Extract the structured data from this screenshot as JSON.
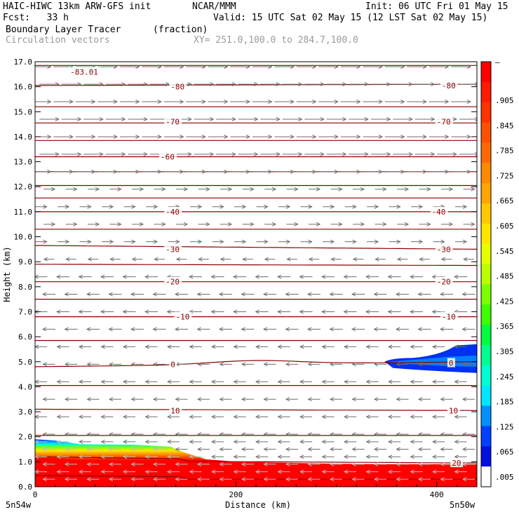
{
  "header": {
    "model": "HAIC-HIWC 13km ARW-GFS init",
    "org": "NCAR/MMM",
    "init": "Init: 06 UTC Fri 01 May 15",
    "fcst": "Fcst:   33 h",
    "valid": "Valid: 15 UTC Sat 02 May 15 (12 LST Sat 02 May 15)",
    "field": "Boundary Layer Tracer",
    "units": "(fraction)",
    "vectors": "Circulation vectors",
    "xy": "XY= 251.0,100.0 to 284.7,100.0"
  },
  "chart_data": {
    "type": "heatmap",
    "title": "Boundary Layer Tracer",
    "xlabel": "Distance (km)",
    "ylabel": "Height (km)",
    "xlim": [
      0,
      440
    ],
    "ylim": [
      0,
      17
    ],
    "x_ticks": [
      0,
      200,
      400
    ],
    "y_ticks": [
      0.0,
      1.0,
      2.0,
      3.0,
      4.0,
      5.0,
      6.0,
      7.0,
      8.0,
      9.0,
      10.0,
      11.0,
      12.0,
      13.0,
      14.0,
      15.0,
      16.0,
      17.0
    ],
    "x_endpoints": {
      "left": "5n54w",
      "right": "5n50w"
    },
    "colorbar": {
      "labels": [
        "–",
        ".905",
        ".845",
        ".785",
        ".725",
        ".665",
        ".605",
        ".545",
        ".485",
        ".425",
        ".365",
        ".305",
        ".245",
        ".185",
        ".125",
        ".065",
        ".005"
      ],
      "colors": [
        "#ff0000",
        "#ff1a00",
        "#ff3300",
        "#ff5000",
        "#ff6a00",
        "#ff8a00",
        "#ffa500",
        "#ffc800",
        "#ffe600",
        "#e6ff00",
        "#b8ff00",
        "#7dff00",
        "#3cff00",
        "#00ff40",
        "#00ff90",
        "#00ffd0",
        "#00e6ff",
        "#0090ff",
        "#0040ff",
        "#0010e0",
        "#ffffff"
      ]
    },
    "contour_color": "#8b0000",
    "isotherm_labels": [
      {
        "value": "-83.01",
        "x": 35,
        "y": 16.6
      },
      {
        "value": "-80",
        "x": 135,
        "y": 16.0
      },
      {
        "value": "-80",
        "x": 405,
        "y": 16.05
      },
      {
        "value": "-70",
        "x": 130,
        "y": 14.6
      },
      {
        "value": "-70",
        "x": 400,
        "y": 14.6
      },
      {
        "value": "-60",
        "x": 125,
        "y": 13.2
      },
      {
        "value": "-40",
        "x": 130,
        "y": 11.0
      },
      {
        "value": "-40",
        "x": 395,
        "y": 11.0
      },
      {
        "value": "-30",
        "x": 130,
        "y": 9.5
      },
      {
        "value": "-30",
        "x": 400,
        "y": 9.5
      },
      {
        "value": "-20",
        "x": 130,
        "y": 8.2
      },
      {
        "value": "-20",
        "x": 400,
        "y": 8.2
      },
      {
        "value": "-10",
        "x": 140,
        "y": 6.8
      },
      {
        "value": "-10",
        "x": 405,
        "y": 6.8
      },
      {
        "value": "0",
        "x": 135,
        "y": 4.9
      },
      {
        "value": "0",
        "x": 412,
        "y": 4.95
      },
      {
        "value": "10",
        "x": 135,
        "y": 3.05
      },
      {
        "value": "10",
        "x": 412,
        "y": 3.05
      },
      {
        "value": "20",
        "x": 415,
        "y": 0.95
      }
    ],
    "isotherm_heights": [
      {
        "value": -83,
        "left": 16.85,
        "right": 16.85
      },
      {
        "value": -80,
        "left": 16.05,
        "right": 16.1
      },
      {
        "value": -75,
        "left": 15.2,
        "right": 15.2
      },
      {
        "value": -70,
        "left": 14.55,
        "right": 14.55
      },
      {
        "value": -65,
        "left": 13.85,
        "right": 13.85
      },
      {
        "value": -60,
        "left": 13.2,
        "right": 13.2
      },
      {
        "value": -55,
        "left": 12.6,
        "right": 12.6
      },
      {
        "value": -50,
        "left": 12.05,
        "right": 12.05
      },
      {
        "value": -45,
        "left": 11.55,
        "right": 11.55
      },
      {
        "value": -40,
        "left": 11.0,
        "right": 11.0
      },
      {
        "value": -35,
        "left": 10.3,
        "right": 10.3
      },
      {
        "value": -30,
        "left": 9.65,
        "right": 9.5
      },
      {
        "value": -25,
        "left": 8.9,
        "right": 8.85
      },
      {
        "value": -20,
        "left": 8.2,
        "right": 8.2
      },
      {
        "value": -15,
        "left": 7.5,
        "right": 7.5
      },
      {
        "value": -10,
        "left": 6.8,
        "right": 6.8
      },
      {
        "value": -5,
        "left": 5.85,
        "right": 5.85
      },
      {
        "value": 0,
        "left": 4.8,
        "right": 5.0
      },
      {
        "value": 5,
        "left": 4.05,
        "right": 4.05
      },
      {
        "value": 10,
        "left": 3.1,
        "right": 3.05
      },
      {
        "value": 15,
        "left": 2.05,
        "right": 2.05
      },
      {
        "value": 20,
        "left": 1.1,
        "right": 0.95
      },
      {
        "value": 25,
        "left": 0.35,
        "right": 0.3
      }
    ],
    "tracer_profile": [
      {
        "x": 0,
        "top": 1.9
      },
      {
        "x": 20,
        "top": 1.85
      },
      {
        "x": 45,
        "top": 1.7
      },
      {
        "x": 100,
        "top": 1.68
      },
      {
        "x": 135,
        "top": 1.6
      },
      {
        "x": 150,
        "top": 1.35
      },
      {
        "x": 170,
        "top": 1.1
      },
      {
        "x": 200,
        "top": 1.0
      },
      {
        "x": 260,
        "top": 0.95
      },
      {
        "x": 300,
        "top": 0.92
      },
      {
        "x": 350,
        "top": 0.9
      },
      {
        "x": 400,
        "top": 0.9
      },
      {
        "x": 440,
        "top": 0.9
      }
    ],
    "upper_tracer": {
      "x_start": 348,
      "x_end": 440,
      "bottom": 4.55,
      "top_left": 5.15,
      "top_right": 5.7
    }
  }
}
